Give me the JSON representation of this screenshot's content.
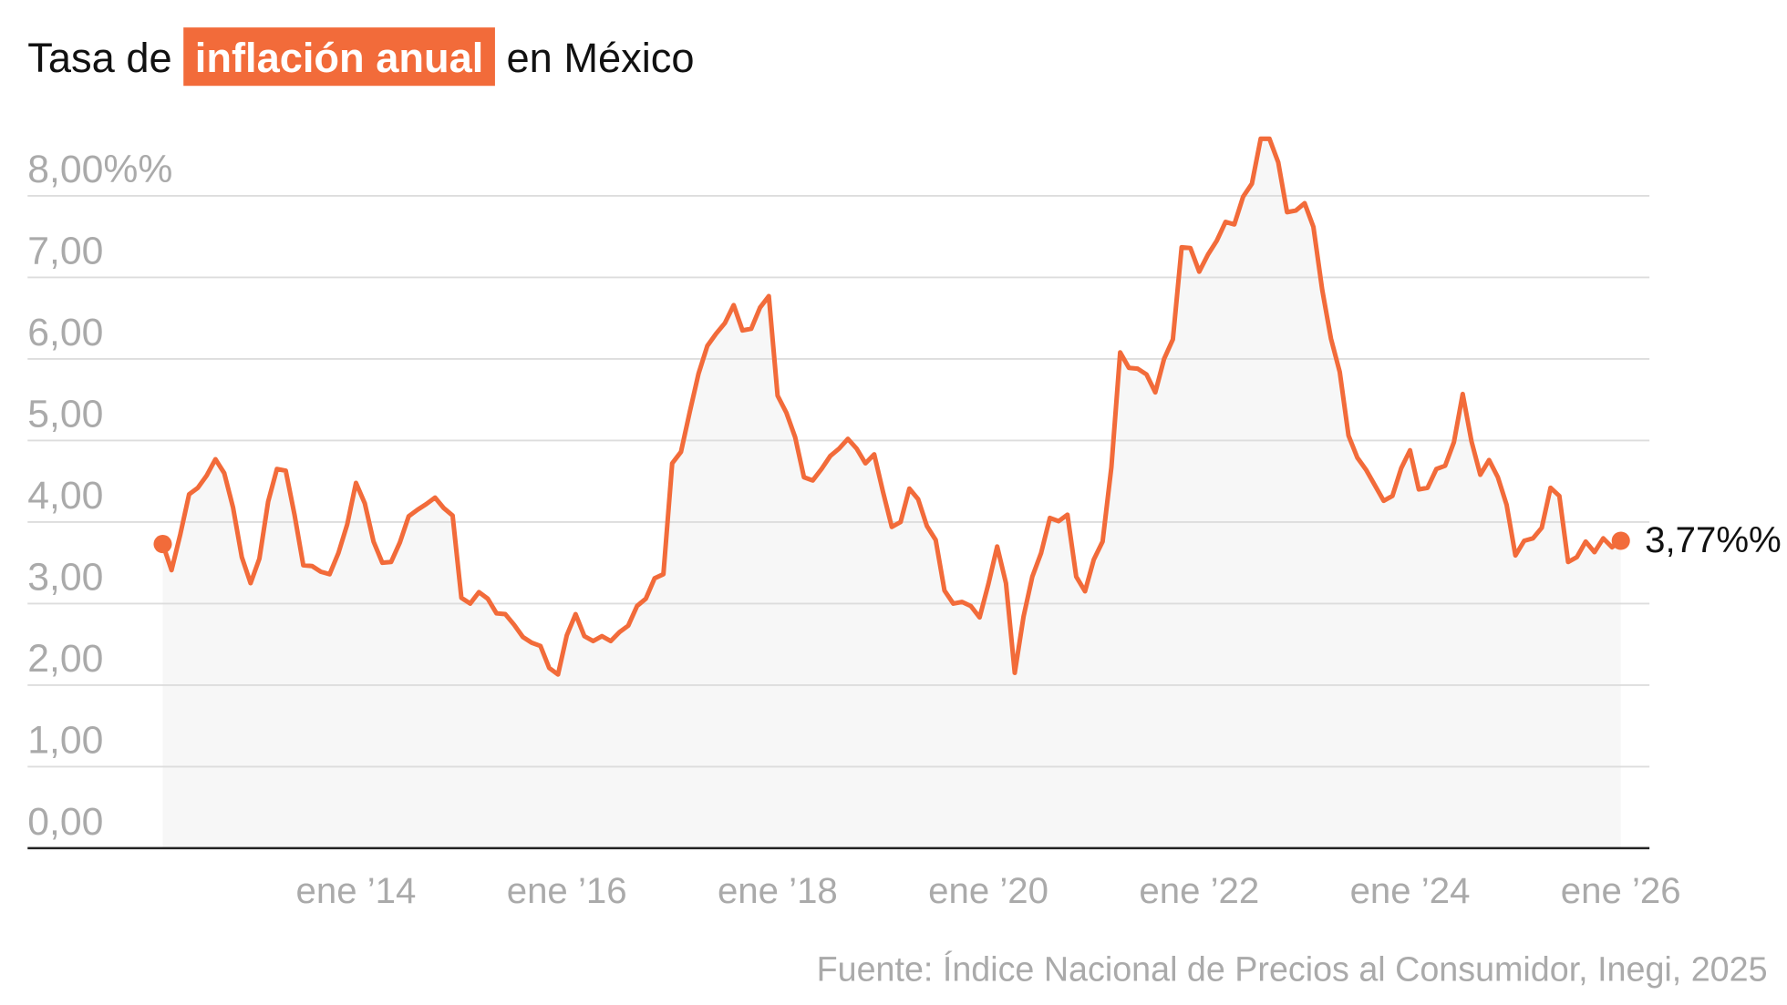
{
  "chart_data": {
    "type": "line",
    "title_parts": [
      "Tasa de",
      "inflación anual",
      "en México"
    ],
    "source": "Fuente: Índice Nacional de Precios al Consumidor, Inegi, 2025",
    "color": "#f26b3a",
    "highlight_color": "#f26b3a",
    "area_color": "#f7f7f7",
    "grid": true,
    "end_label": "3,77%%",
    "x": [
      "2012-03",
      "2012-04",
      "2012-05",
      "2012-06",
      "2012-07",
      "2012-08",
      "2012-09",
      "2012-10",
      "2012-11",
      "2012-12",
      "2013-01",
      "2013-02",
      "2013-03",
      "2013-04",
      "2013-05",
      "2013-06",
      "2013-07",
      "2013-08",
      "2013-09",
      "2013-10",
      "2013-11",
      "2013-12",
      "2014-01",
      "2014-02",
      "2014-03",
      "2014-04",
      "2014-05",
      "2014-06",
      "2014-07",
      "2014-08",
      "2014-09",
      "2014-10",
      "2014-11",
      "2014-12",
      "2015-01",
      "2015-02",
      "2015-03",
      "2015-04",
      "2015-05",
      "2015-06",
      "2015-07",
      "2015-08",
      "2015-09",
      "2015-10",
      "2015-11",
      "2015-12",
      "2016-01",
      "2016-02",
      "2016-03",
      "2016-04",
      "2016-05",
      "2016-06",
      "2016-07",
      "2016-08",
      "2016-09",
      "2016-10",
      "2016-11",
      "2016-12",
      "2017-01",
      "2017-02",
      "2017-03",
      "2017-04",
      "2017-05",
      "2017-06",
      "2017-07",
      "2017-08",
      "2017-09",
      "2017-10",
      "2017-11",
      "2017-12",
      "2018-01",
      "2018-02",
      "2018-03",
      "2018-04",
      "2018-05",
      "2018-06",
      "2018-07",
      "2018-08",
      "2018-09",
      "2018-10",
      "2018-11",
      "2018-12",
      "2019-01",
      "2019-02",
      "2019-03",
      "2019-04",
      "2019-05",
      "2019-06",
      "2019-07",
      "2019-08",
      "2019-09",
      "2019-10",
      "2019-11",
      "2019-12",
      "2020-01",
      "2020-02",
      "2020-03",
      "2020-04",
      "2020-05",
      "2020-06",
      "2020-07",
      "2020-08",
      "2020-09",
      "2020-10",
      "2020-11",
      "2020-12",
      "2021-01",
      "2021-02",
      "2021-03",
      "2021-04",
      "2021-05",
      "2021-06",
      "2021-07",
      "2021-08",
      "2021-09",
      "2021-10",
      "2021-11",
      "2021-12",
      "2022-01",
      "2022-02",
      "2022-03",
      "2022-04",
      "2022-05",
      "2022-06",
      "2022-07",
      "2022-08",
      "2022-09",
      "2022-10",
      "2022-11",
      "2022-12",
      "2023-01",
      "2023-02",
      "2023-03",
      "2023-04",
      "2023-05",
      "2023-06",
      "2023-07",
      "2023-08",
      "2023-09",
      "2023-10",
      "2023-11",
      "2023-12",
      "2024-01",
      "2024-02",
      "2024-03",
      "2024-04",
      "2024-05",
      "2024-06",
      "2024-07",
      "2024-08",
      "2024-09",
      "2024-10",
      "2024-11",
      "2024-12",
      "2025-01",
      "2025-02",
      "2025-03",
      "2025-04",
      "2025-05",
      "2025-06",
      "2025-07",
      "2025-08",
      "2025-09",
      "2025-10",
      "2025-11",
      "2025-12",
      "2026-01"
    ],
    "values": [
      3.73,
      3.41,
      3.85,
      4.34,
      4.42,
      4.57,
      4.77,
      4.6,
      4.18,
      3.57,
      3.25,
      3.55,
      4.25,
      4.65,
      4.63,
      4.09,
      3.47,
      3.46,
      3.39,
      3.36,
      3.62,
      3.97,
      4.48,
      4.23,
      3.76,
      3.5,
      3.51,
      3.75,
      4.07,
      4.15,
      4.22,
      4.3,
      4.17,
      4.08,
      3.07,
      3.0,
      3.14,
      3.06,
      2.88,
      2.87,
      2.74,
      2.59,
      2.52,
      2.48,
      2.21,
      2.13,
      2.61,
      2.87,
      2.6,
      2.54,
      2.6,
      2.54,
      2.65,
      2.73,
      2.97,
      3.06,
      3.31,
      3.36,
      4.72,
      4.86,
      5.35,
      5.82,
      6.16,
      6.31,
      6.44,
      6.66,
      6.35,
      6.37,
      6.63,
      6.77,
      5.55,
      5.34,
      5.04,
      4.55,
      4.51,
      4.65,
      4.81,
      4.9,
      5.02,
      4.9,
      4.72,
      4.83,
      4.37,
      3.94,
      4.0,
      4.41,
      4.28,
      3.95,
      3.78,
      3.16,
      3.0,
      3.02,
      2.97,
      2.83,
      3.24,
      3.7,
      3.25,
      2.15,
      2.84,
      3.33,
      3.62,
      4.05,
      4.01,
      4.09,
      3.33,
      3.15,
      3.54,
      3.76,
      4.67,
      6.08,
      5.89,
      5.88,
      5.81,
      5.59,
      6.0,
      6.24,
      7.37,
      7.36,
      7.07,
      7.28,
      7.45,
      7.68,
      7.65,
      7.99,
      8.15,
      8.7,
      8.7,
      8.41,
      7.8,
      7.82,
      7.91,
      7.62,
      6.85,
      6.25,
      5.84,
      5.06,
      4.79,
      4.64,
      4.45,
      4.26,
      4.32,
      4.66,
      4.88,
      4.4,
      4.42,
      4.65,
      4.69,
      4.98,
      5.57,
      4.99,
      4.58,
      4.76,
      4.55,
      4.21,
      3.59,
      3.77,
      3.8,
      3.93,
      4.42,
      4.32,
      3.51,
      3.57,
      3.76,
      3.63,
      3.8,
      3.69,
      3.77
    ],
    "xlim": [
      "2012-03",
      "2026-01"
    ],
    "xticks": [
      {
        "value": "2014-01",
        "label": "ene ’14"
      },
      {
        "value": "2016-01",
        "label": "ene ’16"
      },
      {
        "value": "2018-01",
        "label": "ene ’18"
      },
      {
        "value": "2020-01",
        "label": "ene ’20"
      },
      {
        "value": "2022-01",
        "label": "ene ’22"
      },
      {
        "value": "2024-01",
        "label": "ene ’24"
      },
      {
        "value": "2026-01",
        "label": "ene ’26"
      }
    ],
    "ylim": [
      0,
      8.9
    ],
    "yticks": [
      {
        "value": 0,
        "label": "0,00"
      },
      {
        "value": 1,
        "label": "1,00"
      },
      {
        "value": 2,
        "label": "2,00"
      },
      {
        "value": 3,
        "label": "3,00"
      },
      {
        "value": 4,
        "label": "4,00"
      },
      {
        "value": 5,
        "label": "5,00"
      },
      {
        "value": 6,
        "label": "6,00"
      },
      {
        "value": 7,
        "label": "7,00"
      },
      {
        "value": 8,
        "label": "8,00%%"
      }
    ]
  }
}
